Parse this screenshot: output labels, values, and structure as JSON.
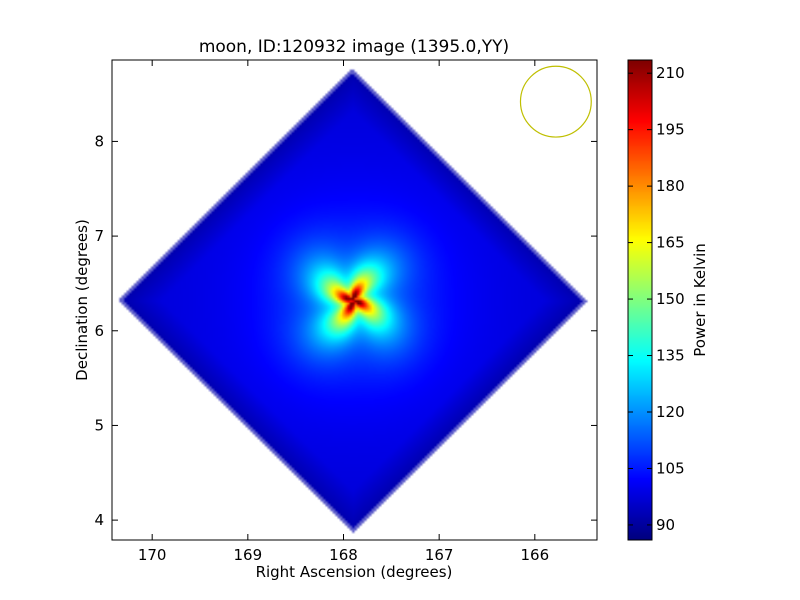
{
  "chart_data": {
    "type": "heatmap",
    "title": "moon, ID:120932 image (1395.0,YY)",
    "xlabel": "Right Ascension (degrees)",
    "ylabel": "Declination (degrees)",
    "x_inverted": true,
    "xlim": [
      170.42,
      165.35
    ],
    "ylim": [
      3.79,
      8.86
    ],
    "xticks": [
      170,
      169,
      168,
      167,
      166
    ],
    "yticks": [
      4,
      5,
      6,
      7,
      8
    ],
    "grid": false,
    "colormap": "jet",
    "colorbar": {
      "label": "Power in Kelvin",
      "range": [
        86.0,
        213.5
      ],
      "ticks": [
        90,
        105,
        120,
        135,
        150,
        165,
        180,
        195,
        210
      ]
    },
    "field": {
      "shape": "diamond",
      "center_ra": 167.9,
      "center_dec": 6.32,
      "background_kelvin": 97,
      "edge_kelvin": 88,
      "peak_kelvin": 213,
      "source_ra": 167.9,
      "source_dec": 6.32
    },
    "beam_circle": {
      "ra": 165.78,
      "dec": 8.42,
      "radius_deg": 0.37,
      "color": "#bfbf00"
    }
  }
}
